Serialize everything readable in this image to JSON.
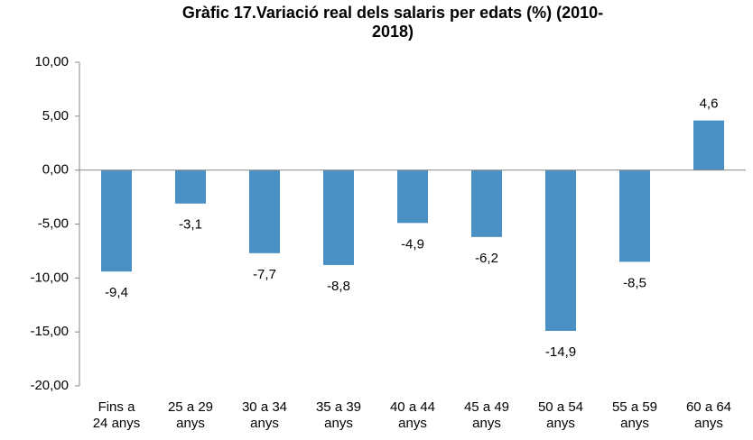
{
  "chart_data": {
    "type": "bar",
    "title": "Gràfic 17.Variació real dels salaris per edats (%) (2010-2018)",
    "categories": [
      "Fins a 24 anys",
      "25 a 29 anys",
      "30 a 34 anys",
      "35 a 39 anys",
      "40 a 44 anys",
      "45 a 49 anys",
      "50 a 54 anys",
      "55 a 59 anys",
      "60 a 64 anys"
    ],
    "values": [
      -9.4,
      -3.1,
      -7.7,
      -8.8,
      -4.9,
      -6.2,
      -14.9,
      -8.5,
      4.6
    ],
    "value_labels": [
      "-9,4",
      "-3,1",
      "-7,7",
      "-8,8",
      "-4,9",
      "-6,2",
      "-14,9",
      "-8,5",
      "4,6"
    ],
    "color": "#4a90c4",
    "ylim": [
      -20,
      10
    ],
    "yticks": [
      {
        "value": -20,
        "label": "-20,00"
      },
      {
        "value": -15,
        "label": "-15,00"
      },
      {
        "value": -10,
        "label": "-10,00"
      },
      {
        "value": -5,
        "label": "-5,00"
      },
      {
        "value": 0,
        "label": "0,00"
      },
      {
        "value": 5,
        "label": "5,00"
      },
      {
        "value": 10,
        "label": "10,00"
      }
    ]
  }
}
